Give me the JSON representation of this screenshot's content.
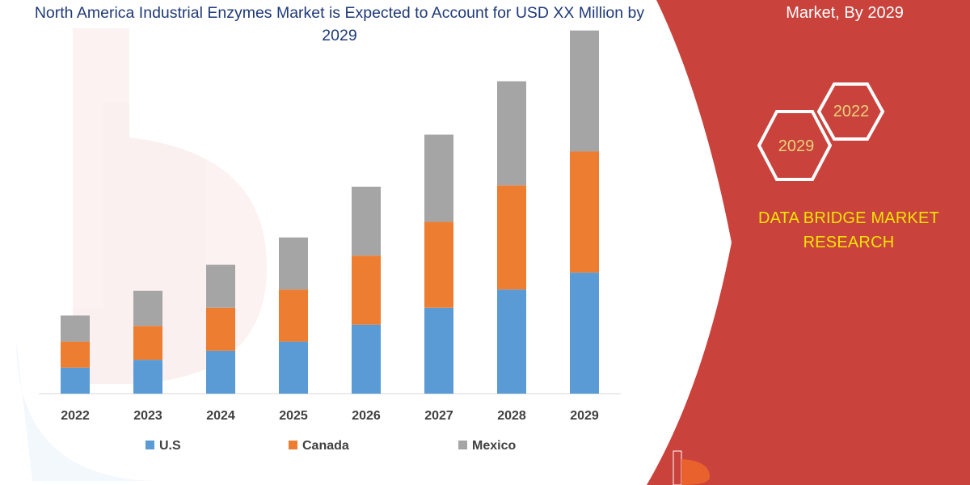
{
  "chart_data": {
    "type": "bar",
    "stacked": true,
    "title": "North America Industrial Enzymes Market is Expected to Account for USD XX Million by 2029",
    "categories": [
      "2022",
      "2023",
      "2024",
      "2025",
      "2026",
      "2027",
      "2028",
      "2029"
    ],
    "series": [
      {
        "name": "U.S",
        "color": "#5b9bd5",
        "values": [
          1.0,
          1.3,
          1.65,
          2.0,
          2.65,
          3.3,
          4.0,
          4.65
        ]
      },
      {
        "name": "Canada",
        "color": "#ed7d31",
        "values": [
          1.0,
          1.3,
          1.65,
          2.0,
          2.65,
          3.3,
          4.0,
          4.65
        ]
      },
      {
        "name": "Mexico",
        "color": "#a5a5a5",
        "values": [
          1.0,
          1.35,
          1.65,
          2.0,
          2.65,
          3.35,
          4.0,
          4.65
        ]
      }
    ],
    "ylim": [
      0,
      14.5
    ],
    "xlabel": "",
    "ylabel": "",
    "grid": false,
    "legend_position": "bottom"
  },
  "side_panel": {
    "title": "Market, By 2029",
    "hex_badges": [
      "2022",
      "2029"
    ],
    "brand": "DATA BRIDGE MARKET RESEARCH",
    "logo_text": "DATA BRIDGE",
    "panel_color": "#c9423c",
    "brand_color": "#f5e400"
  }
}
